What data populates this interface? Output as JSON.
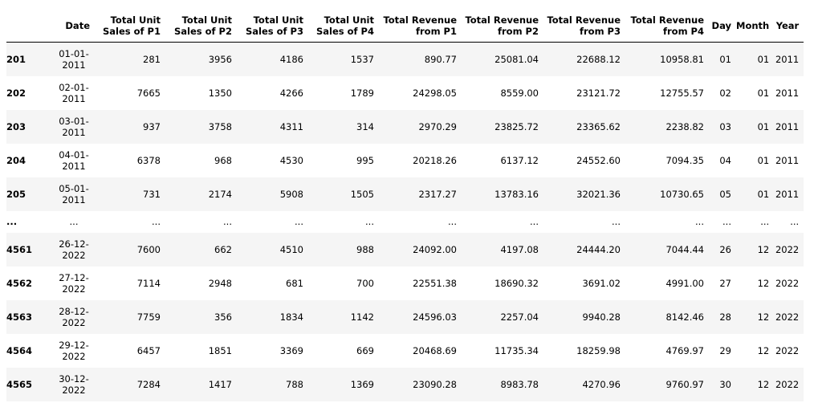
{
  "columns": [
    "",
    "Date",
    "Total Unit Sales of P1",
    "Total Unit Sales of P2",
    "Total Unit Sales of P3",
    "Total Unit Sales of P4",
    "Total Revenue from P1",
    "Total Revenue from P2",
    "Total Revenue from P3",
    "Total Revenue from P4",
    "Day",
    "Month",
    "Year"
  ],
  "rows": [
    [
      "201",
      "01-01-2011",
      "281",
      "3956",
      "4186",
      "1537",
      "890.77",
      "25081.04",
      "22688.12",
      "10958.81",
      "01",
      "01",
      "2011"
    ],
    [
      "202",
      "02-01-2011",
      "7665",
      "1350",
      "4266",
      "1789",
      "24298.05",
      "8559.00",
      "23121.72",
      "12755.57",
      "02",
      "01",
      "2011"
    ],
    [
      "203",
      "03-01-2011",
      "937",
      "3758",
      "4311",
      "314",
      "2970.29",
      "23825.72",
      "23365.62",
      "2238.82",
      "03",
      "01",
      "2011"
    ],
    [
      "204",
      "04-01-2011",
      "6378",
      "968",
      "4530",
      "995",
      "20218.26",
      "6137.12",
      "24552.60",
      "7094.35",
      "04",
      "01",
      "2011"
    ],
    [
      "205",
      "05-01-2011",
      "731",
      "2174",
      "5908",
      "1505",
      "2317.27",
      "13783.16",
      "32021.36",
      "10730.65",
      "05",
      "01",
      "2011"
    ],
    [
      "...",
      "...",
      "...",
      "...",
      "...",
      "...",
      "...",
      "...",
      "...",
      "...",
      "...",
      "...",
      "..."
    ],
    [
      "4561",
      "26-12-2022",
      "7600",
      "662",
      "4510",
      "988",
      "24092.00",
      "4197.08",
      "24444.20",
      "7044.44",
      "26",
      "12",
      "2022"
    ],
    [
      "4562",
      "27-12-2022",
      "7114",
      "2948",
      "681",
      "700",
      "22551.38",
      "18690.32",
      "3691.02",
      "4991.00",
      "27",
      "12",
      "2022"
    ],
    [
      "4563",
      "28-12-2022",
      "7759",
      "356",
      "1834",
      "1142",
      "24596.03",
      "2257.04",
      "9940.28",
      "8142.46",
      "28",
      "12",
      "2022"
    ],
    [
      "4564",
      "29-12-2022",
      "6457",
      "1851",
      "3369",
      "669",
      "20468.69",
      "11735.34",
      "18259.98",
      "4769.97",
      "29",
      "12",
      "2022"
    ],
    [
      "4565",
      "30-12-2022",
      "7284",
      "1417",
      "788",
      "1369",
      "23090.28",
      "8983.78",
      "4270.96",
      "9760.97",
      "30",
      "12",
      "2022"
    ]
  ]
}
